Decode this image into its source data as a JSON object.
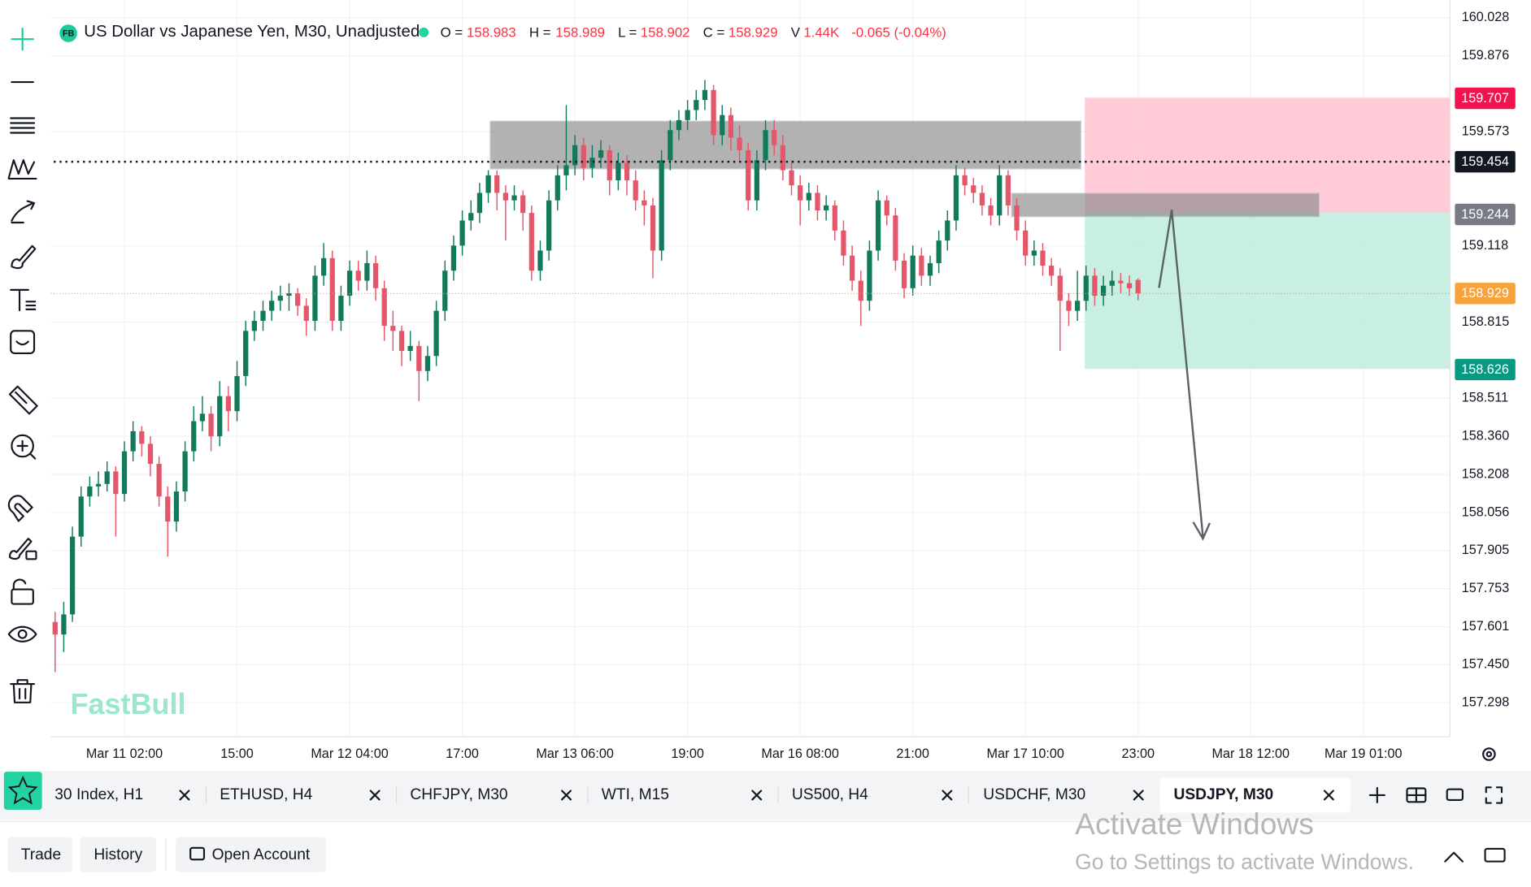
{
  "header": {
    "logo": "FB",
    "title": "US Dollar vs Japanese Yen, M30, Unadjusted",
    "ohlc": [
      {
        "label": "O =",
        "value": 158.983
      },
      {
        "label": "H =",
        "value": 158.989
      },
      {
        "label": "L =",
        "value": 158.902
      },
      {
        "label": "C =",
        "value": 158.929
      }
    ],
    "volume_label": "V",
    "volume": "1.44K",
    "change": "-0.065 (-0.04%)"
  },
  "chart_data": {
    "type": "candlestick",
    "up_color": "#117a5b",
    "down_color": "#e4566a",
    "grid": true,
    "xlim": [
      -17,
      306
    ],
    "xticks": [
      {
        "value": 0,
        "label": "Mar 11 02:00"
      },
      {
        "value": 26,
        "label": "15:00"
      },
      {
        "value": 52,
        "label": "Mar 12 04:00"
      },
      {
        "value": 78,
        "label": "17:00"
      },
      {
        "value": 104,
        "label": "Mar 13 06:00"
      },
      {
        "value": 130,
        "label": "19:00"
      },
      {
        "value": 156,
        "label": "Mar 16 08:00"
      },
      {
        "value": 182,
        "label": "21:00"
      },
      {
        "value": 208,
        "label": "Mar 17 10:00"
      },
      {
        "value": 234,
        "label": "23:00"
      },
      {
        "value": 260,
        "label": "Mar 18 12:00"
      },
      {
        "value": 286,
        "label": "Mar 19 01:00"
      }
    ],
    "ylim": [
      157.163,
      160.098
    ],
    "yticks": [
      160.028,
      159.876,
      159.573,
      159.118,
      158.815,
      158.511,
      {
        "value": 158.36,
        "label": "158.360"
      },
      158.208,
      158.056,
      157.905,
      157.753,
      157.601,
      {
        "value": 157.45,
        "label": "157.450"
      },
      157.298
    ],
    "price_tags": [
      {
        "value": 159.707,
        "color": "#f0134d"
      },
      {
        "value": 159.454,
        "color": "#131722"
      },
      {
        "value": 159.244,
        "color": "#787b86"
      },
      {
        "value": 158.929,
        "color": "#f7a23b"
      },
      {
        "value": 158.626,
        "color": "#089981"
      }
    ],
    "candles": [
      [
        -16,
        157.62,
        157.66,
        157.42,
        157.57
      ],
      [
        -14,
        157.57,
        157.7,
        157.5,
        157.65
      ],
      [
        -12,
        157.65,
        158.0,
        157.62,
        157.96
      ],
      [
        -10,
        157.96,
        158.16,
        157.92,
        158.12
      ],
      [
        -8,
        158.12,
        158.2,
        158.08,
        158.16
      ],
      [
        -6,
        158.16,
        158.22,
        158.12,
        158.17
      ],
      [
        -4,
        158.17,
        158.26,
        158.14,
        158.22
      ],
      [
        -2,
        158.22,
        158.24,
        157.96,
        158.13
      ],
      [
        0,
        158.13,
        158.34,
        158.1,
        158.3
      ],
      [
        2,
        158.3,
        158.42,
        158.26,
        158.38
      ],
      [
        4,
        158.38,
        158.4,
        158.28,
        158.33
      ],
      [
        6,
        158.33,
        158.36,
        158.2,
        158.25
      ],
      [
        8,
        158.25,
        158.28,
        158.08,
        158.12
      ],
      [
        10,
        158.12,
        158.16,
        157.88,
        158.02
      ],
      [
        12,
        158.02,
        158.18,
        157.98,
        158.14
      ],
      [
        14,
        158.14,
        158.34,
        158.1,
        158.3
      ],
      [
        16,
        158.3,
        158.48,
        158.26,
        158.42
      ],
      [
        18,
        158.42,
        158.52,
        158.38,
        158.45
      ],
      [
        20,
        158.45,
        158.48,
        158.3,
        158.36
      ],
      [
        22,
        158.36,
        158.58,
        158.32,
        158.52
      ],
      [
        24,
        158.52,
        158.56,
        158.38,
        158.46
      ],
      [
        26,
        158.46,
        158.66,
        158.42,
        158.6
      ],
      [
        28,
        158.6,
        158.82,
        158.56,
        158.78
      ],
      [
        30,
        158.78,
        158.86,
        158.74,
        158.82
      ],
      [
        32,
        158.82,
        158.9,
        158.78,
        158.86
      ],
      [
        34,
        158.86,
        158.94,
        158.82,
        158.9
      ],
      [
        36,
        158.9,
        158.96,
        158.86,
        158.92
      ],
      [
        38,
        158.92,
        158.97,
        158.86,
        158.93
      ],
      [
        40,
        158.93,
        158.95,
        158.84,
        158.88
      ],
      [
        42,
        158.88,
        158.91,
        158.76,
        158.82
      ],
      [
        44,
        158.82,
        159.04,
        158.78,
        159.0
      ],
      [
        46,
        159.0,
        159.13,
        158.96,
        159.07
      ],
      [
        48,
        159.07,
        159.1,
        158.78,
        158.82
      ],
      [
        50,
        158.82,
        158.96,
        158.78,
        158.92
      ],
      [
        52,
        158.92,
        159.06,
        158.88,
        159.02
      ],
      [
        54,
        159.02,
        159.06,
        158.94,
        158.98
      ],
      [
        56,
        158.98,
        159.1,
        158.94,
        159.05
      ],
      [
        58,
        159.05,
        159.08,
        158.9,
        158.95
      ],
      [
        60,
        158.95,
        158.98,
        158.74,
        158.8
      ],
      [
        62,
        158.8,
        158.86,
        158.7,
        158.78
      ],
      [
        64,
        158.78,
        158.8,
        158.64,
        158.7
      ],
      [
        66,
        158.7,
        158.78,
        158.66,
        158.72
      ],
      [
        68,
        158.72,
        158.74,
        158.5,
        158.62
      ],
      [
        70,
        158.62,
        158.72,
        158.58,
        158.68
      ],
      [
        72,
        158.68,
        158.9,
        158.64,
        158.86
      ],
      [
        74,
        158.86,
        159.06,
        158.82,
        159.02
      ],
      [
        76,
        159.02,
        159.16,
        158.98,
        159.12
      ],
      [
        78,
        159.12,
        159.26,
        159.08,
        159.22
      ],
      [
        80,
        159.22,
        159.3,
        159.18,
        159.25
      ],
      [
        82,
        159.25,
        159.37,
        159.21,
        159.33
      ],
      [
        84,
        159.33,
        159.42,
        159.29,
        159.4
      ],
      [
        86,
        159.4,
        159.42,
        159.26,
        159.33
      ],
      [
        88,
        159.33,
        159.36,
        159.14,
        159.3
      ],
      [
        90,
        159.3,
        159.36,
        159.26,
        159.32
      ],
      [
        92,
        159.32,
        159.34,
        159.18,
        159.25
      ],
      [
        94,
        159.25,
        159.28,
        158.98,
        159.02
      ],
      [
        96,
        159.02,
        159.14,
        158.98,
        159.1
      ],
      [
        98,
        159.1,
        159.34,
        159.06,
        159.3
      ],
      [
        100,
        159.3,
        159.44,
        159.26,
        159.4
      ],
      [
        102,
        159.4,
        159.68,
        159.34,
        159.44
      ],
      [
        104,
        159.44,
        159.56,
        159.4,
        159.52
      ],
      [
        106,
        159.52,
        159.55,
        159.38,
        159.43
      ],
      [
        108,
        159.43,
        159.52,
        159.39,
        159.47
      ],
      [
        110,
        159.47,
        159.54,
        159.43,
        159.5
      ],
      [
        112,
        159.5,
        159.52,
        159.32,
        159.38
      ],
      [
        114,
        159.38,
        159.49,
        159.34,
        159.45
      ],
      [
        116,
        159.45,
        159.48,
        159.32,
        159.38
      ],
      [
        118,
        159.38,
        159.42,
        159.26,
        159.3
      ],
      [
        120,
        159.3,
        159.34,
        159.2,
        159.28
      ],
      [
        122,
        159.28,
        159.31,
        158.99,
        159.1
      ],
      [
        124,
        159.1,
        159.5,
        159.06,
        159.46
      ],
      [
        126,
        159.46,
        159.62,
        159.42,
        159.58
      ],
      [
        128,
        159.58,
        159.66,
        159.54,
        159.62
      ],
      [
        130,
        159.62,
        159.7,
        159.58,
        159.66
      ],
      [
        132,
        159.66,
        159.74,
        159.62,
        159.7
      ],
      [
        134,
        159.7,
        159.78,
        159.66,
        159.74
      ],
      [
        136,
        159.74,
        159.76,
        159.52,
        159.56
      ],
      [
        138,
        159.56,
        159.68,
        159.52,
        159.64
      ],
      [
        140,
        159.64,
        159.67,
        159.5,
        159.55
      ],
      [
        142,
        159.55,
        159.6,
        159.46,
        159.5
      ],
      [
        144,
        159.5,
        159.53,
        159.26,
        159.3
      ],
      [
        146,
        159.3,
        159.5,
        159.26,
        159.46
      ],
      [
        148,
        159.46,
        159.62,
        159.42,
        159.58
      ],
      [
        150,
        159.58,
        159.62,
        159.48,
        159.52
      ],
      [
        152,
        159.52,
        159.56,
        159.38,
        159.42
      ],
      [
        154,
        159.42,
        159.46,
        159.32,
        159.36
      ],
      [
        156,
        159.36,
        159.4,
        159.2,
        159.3
      ],
      [
        158,
        159.3,
        159.37,
        159.26,
        159.33
      ],
      [
        160,
        159.33,
        159.36,
        159.22,
        159.26
      ],
      [
        162,
        159.26,
        159.32,
        159.22,
        159.28
      ],
      [
        164,
        159.28,
        159.3,
        159.14,
        159.18
      ],
      [
        166,
        159.18,
        159.22,
        159.04,
        159.08
      ],
      [
        168,
        159.08,
        159.12,
        158.94,
        158.98
      ],
      [
        170,
        158.98,
        159.02,
        158.8,
        158.9
      ],
      [
        172,
        158.9,
        159.14,
        158.86,
        159.1
      ],
      [
        174,
        159.1,
        159.34,
        159.06,
        159.3
      ],
      [
        176,
        159.3,
        159.32,
        159.2,
        159.24
      ],
      [
        178,
        159.24,
        159.27,
        159.02,
        159.06
      ],
      [
        180,
        159.06,
        159.09,
        158.91,
        158.95
      ],
      [
        182,
        158.95,
        159.12,
        158.92,
        159.08
      ],
      [
        184,
        159.08,
        159.11,
        158.96,
        159.0
      ],
      [
        186,
        159.0,
        159.08,
        158.96,
        159.05
      ],
      [
        188,
        159.05,
        159.18,
        159.01,
        159.14
      ],
      [
        190,
        159.14,
        159.26,
        159.1,
        159.22
      ],
      [
        192,
        159.22,
        159.44,
        159.18,
        159.4
      ],
      [
        194,
        159.4,
        159.43,
        159.32,
        159.36
      ],
      [
        196,
        159.36,
        159.39,
        159.29,
        159.33
      ],
      [
        198,
        159.33,
        159.36,
        159.24,
        159.28
      ],
      [
        200,
        159.28,
        159.31,
        159.2,
        159.24
      ],
      [
        202,
        159.24,
        159.44,
        159.2,
        159.4
      ],
      [
        204,
        159.4,
        159.42,
        159.24,
        159.28
      ],
      [
        206,
        159.28,
        159.31,
        159.14,
        159.18
      ],
      [
        208,
        159.18,
        159.22,
        159.04,
        159.08
      ],
      [
        210,
        159.08,
        159.14,
        159.04,
        159.1
      ],
      [
        212,
        159.1,
        159.13,
        159.0,
        159.04
      ],
      [
        214,
        159.04,
        159.07,
        158.96,
        159.0
      ],
      [
        216,
        159.0,
        159.03,
        158.7,
        158.9
      ],
      [
        218,
        158.9,
        158.93,
        158.8,
        158.86
      ],
      [
        220,
        158.86,
        159.02,
        158.82,
        158.9
      ],
      [
        222,
        158.9,
        159.04,
        158.86,
        159.0
      ],
      [
        224,
        159.0,
        159.03,
        158.88,
        158.92
      ],
      [
        226,
        158.92,
        159.0,
        158.88,
        158.96
      ],
      [
        228,
        158.96,
        159.02,
        158.92,
        158.98
      ],
      [
        230,
        158.98,
        159.01,
        158.93,
        158.97
      ],
      [
        232,
        158.97,
        159.0,
        158.92,
        158.95
      ],
      [
        234,
        158.983,
        158.989,
        158.902,
        158.929
      ]
    ]
  },
  "watermark": "FastBull",
  "tabs": [
    "30 Index, H1",
    "ETHUSD, H4",
    "CHFJPY, M30",
    "WTI, M15",
    "US500, H4",
    "USDCHF, M30",
    "USDJPY, M30"
  ],
  "active_tab": 6,
  "buttons": [
    "Trade",
    "History",
    "Open Account"
  ],
  "activation": {
    "title": "Activate Windows",
    "subtitle": "Go to Settings to activate Windows."
  }
}
